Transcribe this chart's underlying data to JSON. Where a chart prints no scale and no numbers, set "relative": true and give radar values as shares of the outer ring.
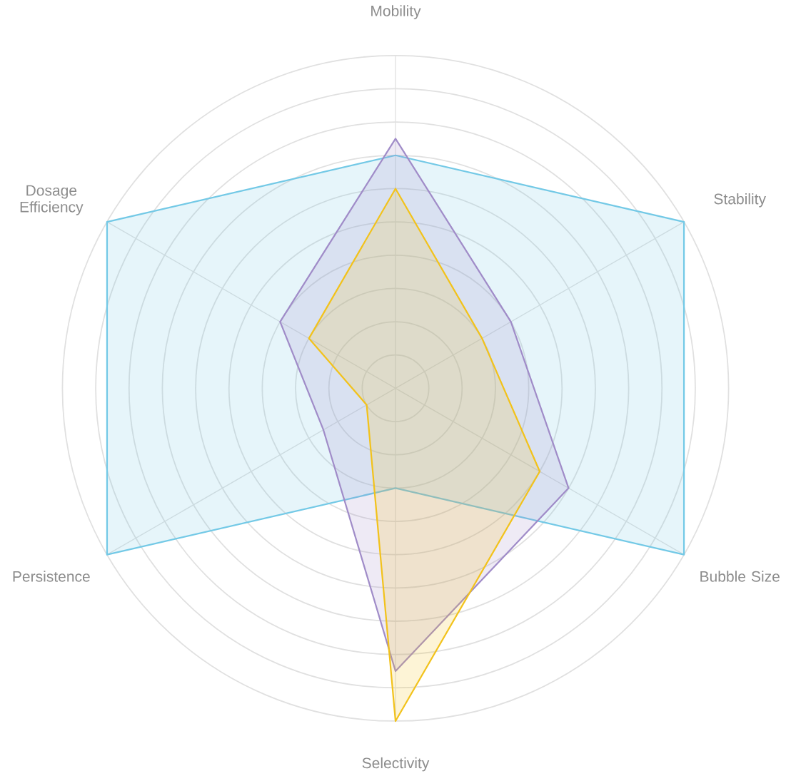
{
  "chart_data": {
    "type": "radar",
    "relative": true,
    "grid": true,
    "categories": [
      "Mobility",
      "Stability",
      "Bubble Size",
      "Selectivity",
      "Persistence",
      "Dosage Efficiency"
    ],
    "series": [
      {
        "color": "#73c9e6",
        "values": [
          0.7,
          1,
          1,
          0.3,
          1,
          1
        ]
      },
      {
        "color": "#a08cc8",
        "values": [
          0.75,
          0.4,
          0.6,
          0.85,
          0.25,
          0.4
        ]
      },
      {
        "color": "#f2c21b",
        "values": [
          0.6,
          0.3,
          0.5,
          1,
          0.1,
          0.3
        ]
      }
    ]
  }
}
